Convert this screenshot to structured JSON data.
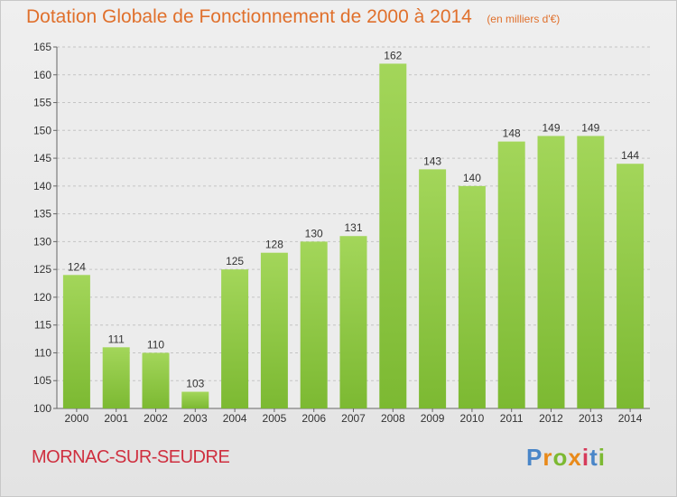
{
  "chart_data": {
    "type": "bar",
    "title": "Dotation Globale de Fonctionnement de 2000 à 2014",
    "subtitle": "(en milliers d'€)",
    "categories": [
      "2000",
      "2001",
      "2002",
      "2003",
      "2004",
      "2005",
      "2006",
      "2007",
      "2008",
      "2009",
      "2010",
      "2011",
      "2012",
      "2013",
      "2014"
    ],
    "values": [
      124,
      111,
      110,
      103,
      125,
      128,
      130,
      131,
      162,
      143,
      140,
      148,
      149,
      149,
      144
    ],
    "ylim": [
      100,
      165
    ],
    "yticks": [
      100,
      105,
      110,
      115,
      120,
      125,
      130,
      135,
      140,
      145,
      150,
      155,
      160,
      165
    ],
    "grid": true,
    "bar_color": "#7cb932",
    "bar_color_light": "#a3d65a"
  },
  "footer": {
    "commune": "MORNAC-SUR-SEUDRE",
    "brand": "Proxiti",
    "brand_colors": [
      "#4a86c8",
      "#e98a1a",
      "#7cb932",
      "#e98a1a",
      "#d63a5a",
      "#4a86c8",
      "#7cb932"
    ]
  }
}
